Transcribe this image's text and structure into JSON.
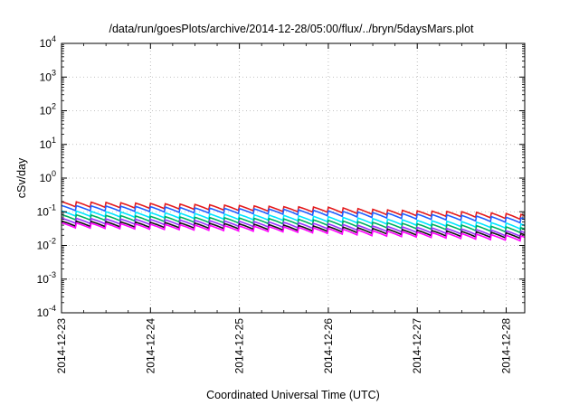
{
  "chart_data": {
    "type": "line",
    "title": "/data/run/goesPlots/archive/2014-12-28/05:00/flux/../bryn/5daysMars.plot",
    "xlabel": "Coordinated Universal Time (UTC)",
    "ylabel": "cSv/day",
    "yscale": "log",
    "ylim": [
      0.0001,
      10000
    ],
    "xlim": [
      "2014-12-23T00:00",
      "2014-12-28T05:00"
    ],
    "grid": true,
    "legend": "none",
    "y_ticks": [
      {
        "base": "10",
        "exp": "-4"
      },
      {
        "base": "10",
        "exp": "-3"
      },
      {
        "base": "10",
        "exp": "-2"
      },
      {
        "base": "10",
        "exp": "-1"
      },
      {
        "base": "10",
        "exp": "0"
      },
      {
        "base": "10",
        "exp": "1"
      },
      {
        "base": "10",
        "exp": "2"
      },
      {
        "base": "10",
        "exp": "3"
      },
      {
        "base": "10",
        "exp": "4"
      }
    ],
    "x_ticks": [
      "2014-12-23",
      "2014-12-24",
      "2014-12-25",
      "2014-12-26",
      "2014-12-27",
      "2014-12-28"
    ],
    "cycle_hours": 4,
    "time_hours": [
      0,
      12,
      24,
      36,
      48,
      60,
      72,
      84,
      96,
      108,
      120,
      125
    ],
    "series": [
      {
        "color": "#e41a1c",
        "values": [
          0.17,
          0.16,
          0.15,
          0.14,
          0.13,
          0.12,
          0.115,
          0.1,
          0.09,
          0.085,
          0.075,
          0.07
        ]
      },
      {
        "color": "#1f5fff",
        "values": [
          0.13,
          0.125,
          0.12,
          0.11,
          0.105,
          0.1,
          0.09,
          0.08,
          0.072,
          0.066,
          0.058,
          0.055
        ]
      },
      {
        "color": "#00e5ff",
        "values": [
          0.09,
          0.085,
          0.08,
          0.075,
          0.07,
          0.066,
          0.06,
          0.053,
          0.047,
          0.043,
          0.039,
          0.036
        ]
      },
      {
        "color": "#00b060",
        "values": [
          0.07,
          0.066,
          0.062,
          0.058,
          0.055,
          0.052,
          0.047,
          0.041,
          0.037,
          0.034,
          0.03,
          0.028
        ]
      },
      {
        "color": "#9b30ff",
        "values": [
          0.055,
          0.052,
          0.05,
          0.047,
          0.044,
          0.041,
          0.037,
          0.032,
          0.029,
          0.026,
          0.023,
          0.022
        ]
      },
      {
        "color": "#111111",
        "values": [
          0.045,
          0.043,
          0.041,
          0.039,
          0.037,
          0.034,
          0.031,
          0.027,
          0.024,
          0.022,
          0.02,
          0.019
        ]
      },
      {
        "color": "#ff00ff",
        "values": [
          0.04,
          0.038,
          0.036,
          0.034,
          0.032,
          0.03,
          0.027,
          0.023,
          0.021,
          0.019,
          0.017,
          0.016
        ]
      }
    ]
  }
}
